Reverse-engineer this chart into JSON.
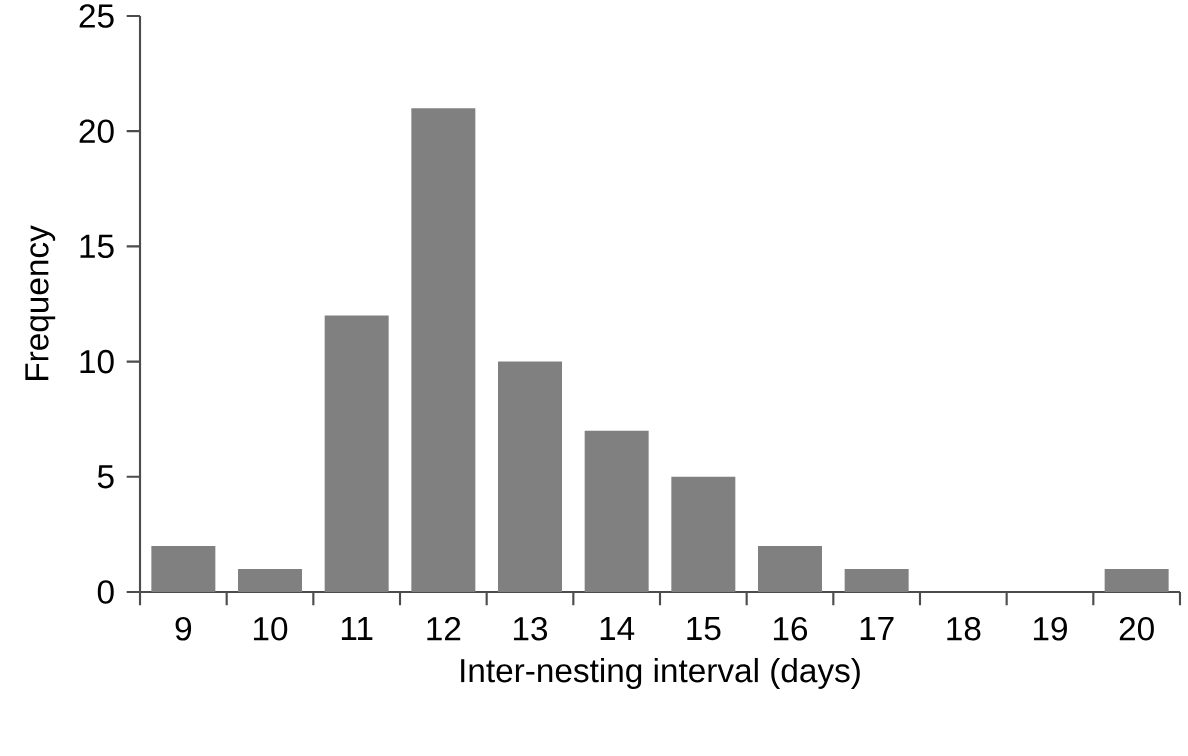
{
  "chart_data": {
    "type": "bar",
    "xlabel": "Inter-nesting interval (days)",
    "ylabel": "Frequency",
    "categories": [
      "9",
      "10",
      "11",
      "12",
      "13",
      "14",
      "15",
      "16",
      "17",
      "18",
      "19",
      "20"
    ],
    "values": [
      2,
      1,
      12,
      21,
      10,
      7,
      5,
      2,
      1,
      0,
      0,
      1
    ],
    "color": "#808080",
    "ylim": [
      0,
      25
    ],
    "yticks": [
      0,
      5,
      10,
      15,
      20,
      25
    ],
    "grid": false
  }
}
